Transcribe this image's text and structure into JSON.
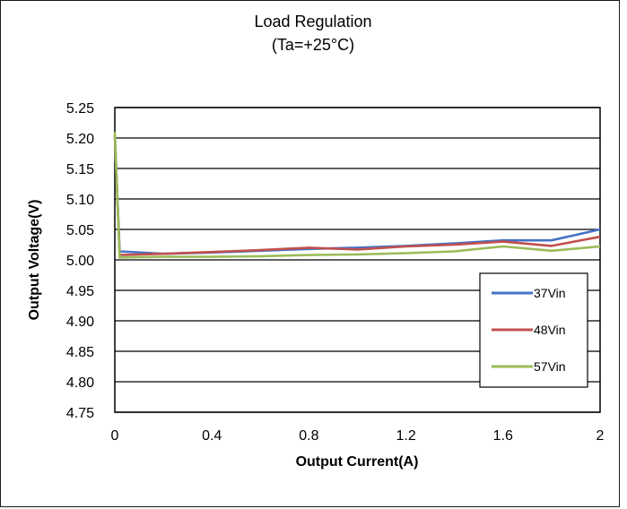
{
  "chart_data": {
    "type": "line",
    "title": "Load Regulation",
    "subtitle": "(Ta=+25°C)",
    "xlabel": "Output Current(A)",
    "ylabel": "Output Voltage(V)",
    "xlim": [
      0,
      2
    ],
    "ylim": [
      4.75,
      5.25
    ],
    "x_ticks": [
      "0",
      "0.4",
      "0.8",
      "1.2",
      "1.6",
      "2"
    ],
    "y_ticks": [
      "5.25",
      "5.20",
      "5.15",
      "5.10",
      "5.05",
      "5.00",
      "4.95",
      "4.90",
      "4.85",
      "4.80",
      "4.75"
    ],
    "grid": "horizontal",
    "legend_position": "bottom-right",
    "series": [
      {
        "name": "37Vin",
        "color": "#4472c4",
        "x": [
          0,
          0.02,
          0.2,
          0.4,
          0.6,
          0.8,
          1.0,
          1.2,
          1.4,
          1.6,
          1.8,
          2.0
        ],
        "y": [
          5.205,
          5.014,
          5.01,
          5.012,
          5.015,
          5.018,
          5.02,
          5.023,
          5.027,
          5.032,
          5.032,
          5.05
        ]
      },
      {
        "name": "48Vin",
        "color": "#c0504d",
        "x": [
          0,
          0.02,
          0.2,
          0.4,
          0.6,
          0.8,
          1.0,
          1.2,
          1.4,
          1.6,
          1.8,
          2.0
        ],
        "y": [
          5.205,
          5.008,
          5.01,
          5.013,
          5.016,
          5.02,
          5.017,
          5.022,
          5.025,
          5.03,
          5.023,
          5.038
        ]
      },
      {
        "name": "57Vin",
        "color": "#9bbb59",
        "x": [
          0,
          0.02,
          0.2,
          0.4,
          0.6,
          0.8,
          1.0,
          1.2,
          1.4,
          1.6,
          1.8,
          2.0
        ],
        "y": [
          5.21,
          5.004,
          5.005,
          5.005,
          5.006,
          5.008,
          5.009,
          5.011,
          5.014,
          5.022,
          5.015,
          5.022
        ]
      }
    ]
  }
}
